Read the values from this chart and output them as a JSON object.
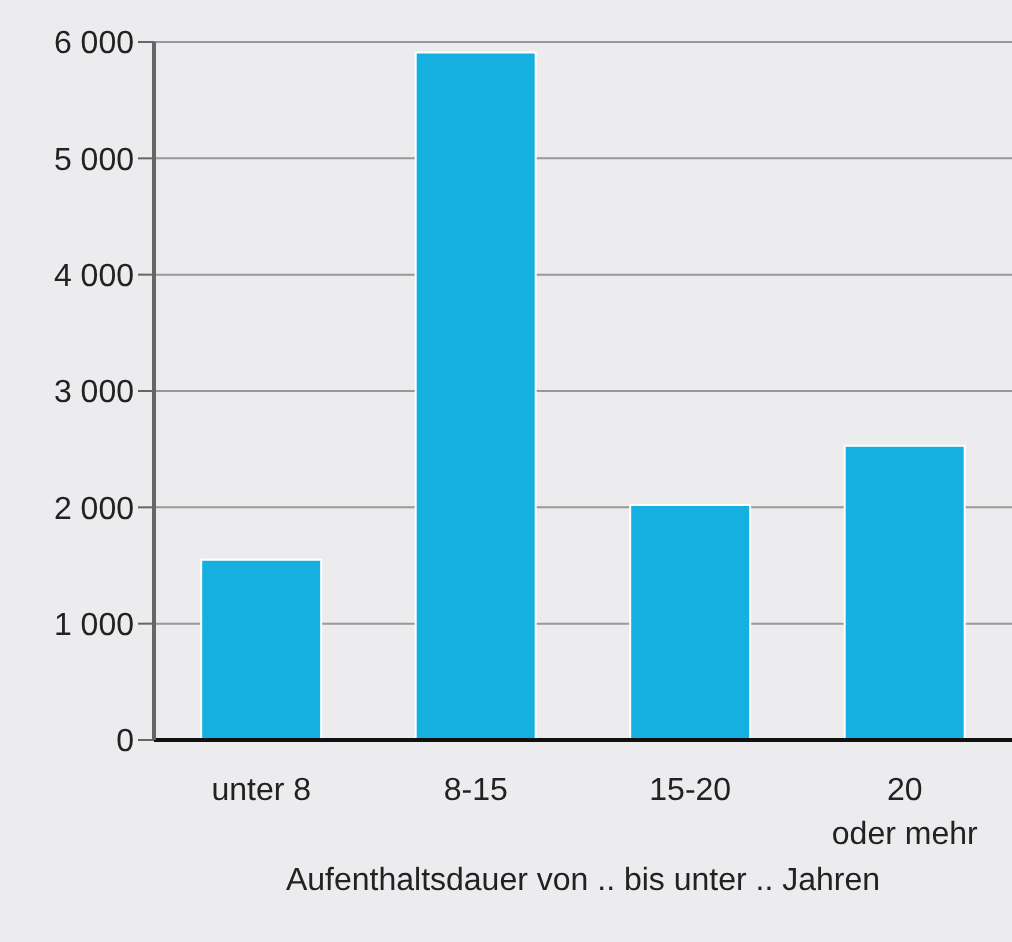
{
  "chart_data": {
    "type": "bar",
    "xlabel": "Aufenthaltsdauer von .. bis unter .. Jahren",
    "categories": [
      "unter 8",
      "8-15",
      "15-20",
      "20\noder mehr"
    ],
    "values": [
      1550,
      5910,
      2020,
      2530
    ],
    "color": "#15b0e0",
    "ylim": [
      0,
      6000
    ],
    "yticks": [
      {
        "value": 0,
        "label": "0"
      },
      {
        "value": 1000,
        "label": "1 000"
      },
      {
        "value": 2000,
        "label": "2 000"
      },
      {
        "value": 3000,
        "label": "3 000"
      },
      {
        "value": 4000,
        "label": "4 000"
      },
      {
        "value": 5000,
        "label": "5 000"
      },
      {
        "value": 6000,
        "label": "6 000"
      }
    ],
    "grid": "y"
  }
}
